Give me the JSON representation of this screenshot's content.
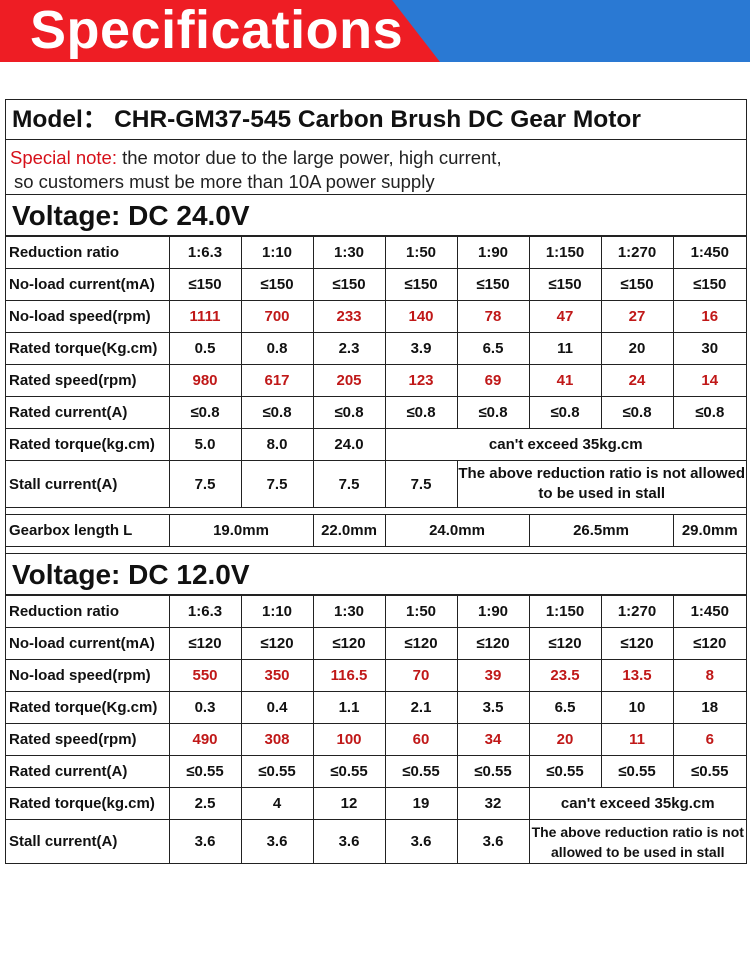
{
  "banner": {
    "title": "Specifications"
  },
  "model": "Model： CHR-GM37-545 Carbon Brush DC Gear Motor",
  "note": {
    "label": "Special note:",
    "text1": " the motor due to the large power, high current,",
    "text2": "so customers must be more than 10A power supply"
  },
  "v24": {
    "title": "Voltage: DC 24.0V",
    "ratios": [
      "1:6.3",
      "1:10",
      "1:30",
      "1:50",
      "1:90",
      "1:150",
      "1:270",
      "1:450"
    ],
    "noload_current": [
      "≤150",
      "≤150",
      "≤150",
      "≤150",
      "≤150",
      "≤150",
      "≤150",
      "≤150"
    ],
    "noload_speed": [
      "1111",
      "700",
      "233",
      "140",
      "78",
      "47",
      "27",
      "16"
    ],
    "rated_torque": [
      "0.5",
      "0.8",
      "2.3",
      "3.9",
      "6.5",
      "11",
      "20",
      "30"
    ],
    "rated_speed": [
      "980",
      "617",
      "205",
      "123",
      "69",
      "41",
      "24",
      "14"
    ],
    "rated_current": [
      "≤0.8",
      "≤0.8",
      "≤0.8",
      "≤0.8",
      "≤0.8",
      "≤0.8",
      "≤0.8",
      "≤0.8"
    ],
    "stall_torque": [
      "5.0",
      "8.0",
      "24.0"
    ],
    "stall_torque_note": "can't exceed 35kg.cm",
    "stall_current": [
      "7.5",
      "7.5",
      "7.5",
      "7.5"
    ],
    "stall_note": "The above reduction ratio is not allowed to be used in stall",
    "gearbox": [
      "19.0mm",
      "22.0mm",
      "24.0mm",
      "26.5mm",
      "29.0mm"
    ]
  },
  "v12": {
    "title": "Voltage: DC 12.0V",
    "ratios": [
      "1:6.3",
      "1:10",
      "1:30",
      "1:50",
      "1:90",
      "1:150",
      "1:270",
      "1:450"
    ],
    "noload_current": [
      "≤120",
      "≤120",
      "≤120",
      "≤120",
      "≤120",
      "≤120",
      "≤120",
      "≤120"
    ],
    "noload_speed": [
      "550",
      "350",
      "116.5",
      "70",
      "39",
      "23.5",
      "13.5",
      "8"
    ],
    "rated_torque": [
      "0.3",
      "0.4",
      "1.1",
      "2.1",
      "3.5",
      "6.5",
      "10",
      "18"
    ],
    "rated_speed": [
      "490",
      "308",
      "100",
      "60",
      "34",
      "20",
      "11",
      "6"
    ],
    "rated_current": [
      "≤0.55",
      "≤0.55",
      "≤0.55",
      "≤0.55",
      "≤0.55",
      "≤0.55",
      "≤0.55",
      "≤0.55"
    ],
    "stall_torque": [
      "2.5",
      "4",
      "12",
      "19",
      "32"
    ],
    "stall_torque_note": "can't exceed 35kg.cm",
    "stall_current": [
      "3.6",
      "3.6",
      "3.6",
      "3.6",
      "3.6"
    ],
    "stall_note": "The above reduction ratio is not allowed to be used in stall"
  },
  "labels": {
    "ratio": "Reduction ratio",
    "noload_current": "No-load current(mA)",
    "noload_speed": "No-load speed(rpm)",
    "rated_torque": "Rated torque(Kg.cm)",
    "rated_speed": "Rated speed(rpm)",
    "rated_current": "Rated current(A)",
    "stall_torque": "Rated torque(kg.cm)",
    "stall_current": "Stall current(A)",
    "gearbox": "Gearbox length L"
  },
  "colors": {
    "accent_red": "#ee1d24",
    "banner_blue": "#2a79d3",
    "value_red": "#c01818"
  }
}
